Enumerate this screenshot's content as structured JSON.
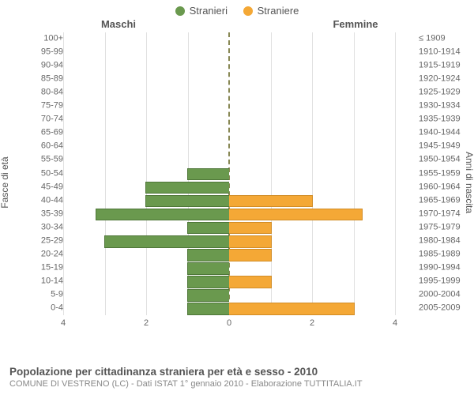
{
  "legend": {
    "male": "Stranieri",
    "female": "Straniere"
  },
  "headers": {
    "left": "Maschi",
    "right": "Femmine"
  },
  "axis": {
    "left_title": "Fasce di età",
    "right_title": "Anni di nascita",
    "xmax": 4,
    "xticks": [
      4,
      2,
      0,
      2,
      4
    ]
  },
  "colors": {
    "male_fill": "#6a994e",
    "male_border": "#4e7638",
    "female_fill": "#f4a836",
    "female_border": "#d18c26",
    "grid": "#e0e0e0",
    "center_line": "#888855",
    "bg": "#ffffff",
    "text": "#555555"
  },
  "rows": [
    {
      "age": "100+",
      "birth": "≤ 1909",
      "m": 0,
      "f": 0
    },
    {
      "age": "95-99",
      "birth": "1910-1914",
      "m": 0,
      "f": 0
    },
    {
      "age": "90-94",
      "birth": "1915-1919",
      "m": 0,
      "f": 0
    },
    {
      "age": "85-89",
      "birth": "1920-1924",
      "m": 0,
      "f": 0
    },
    {
      "age": "80-84",
      "birth": "1925-1929",
      "m": 0,
      "f": 0
    },
    {
      "age": "75-79",
      "birth": "1930-1934",
      "m": 0,
      "f": 0
    },
    {
      "age": "70-74",
      "birth": "1935-1939",
      "m": 0,
      "f": 0
    },
    {
      "age": "65-69",
      "birth": "1940-1944",
      "m": 0,
      "f": 0
    },
    {
      "age": "60-64",
      "birth": "1945-1949",
      "m": 0,
      "f": 0
    },
    {
      "age": "55-59",
      "birth": "1950-1954",
      "m": 0,
      "f": 0
    },
    {
      "age": "50-54",
      "birth": "1955-1959",
      "m": 1,
      "f": 0
    },
    {
      "age": "45-49",
      "birth": "1960-1964",
      "m": 2,
      "f": 0
    },
    {
      "age": "40-44",
      "birth": "1965-1969",
      "m": 2,
      "f": 2
    },
    {
      "age": "35-39",
      "birth": "1970-1974",
      "m": 3.2,
      "f": 3.2
    },
    {
      "age": "30-34",
      "birth": "1975-1979",
      "m": 1,
      "f": 1
    },
    {
      "age": "25-29",
      "birth": "1980-1984",
      "m": 3,
      "f": 1
    },
    {
      "age": "20-24",
      "birth": "1985-1989",
      "m": 1,
      "f": 1
    },
    {
      "age": "15-19",
      "birth": "1990-1994",
      "m": 1,
      "f": 0
    },
    {
      "age": "10-14",
      "birth": "1995-1999",
      "m": 1,
      "f": 1
    },
    {
      "age": "5-9",
      "birth": "2000-2004",
      "m": 1,
      "f": 0
    },
    {
      "age": "0-4",
      "birth": "2005-2009",
      "m": 1,
      "f": 3
    }
  ],
  "footer": {
    "title": "Popolazione per cittadinanza straniera per età e sesso - 2010",
    "subtitle": "COMUNE DI VESTRENO (LC) - Dati ISTAT 1° gennaio 2010 - Elaborazione TUTTITALIA.IT"
  }
}
